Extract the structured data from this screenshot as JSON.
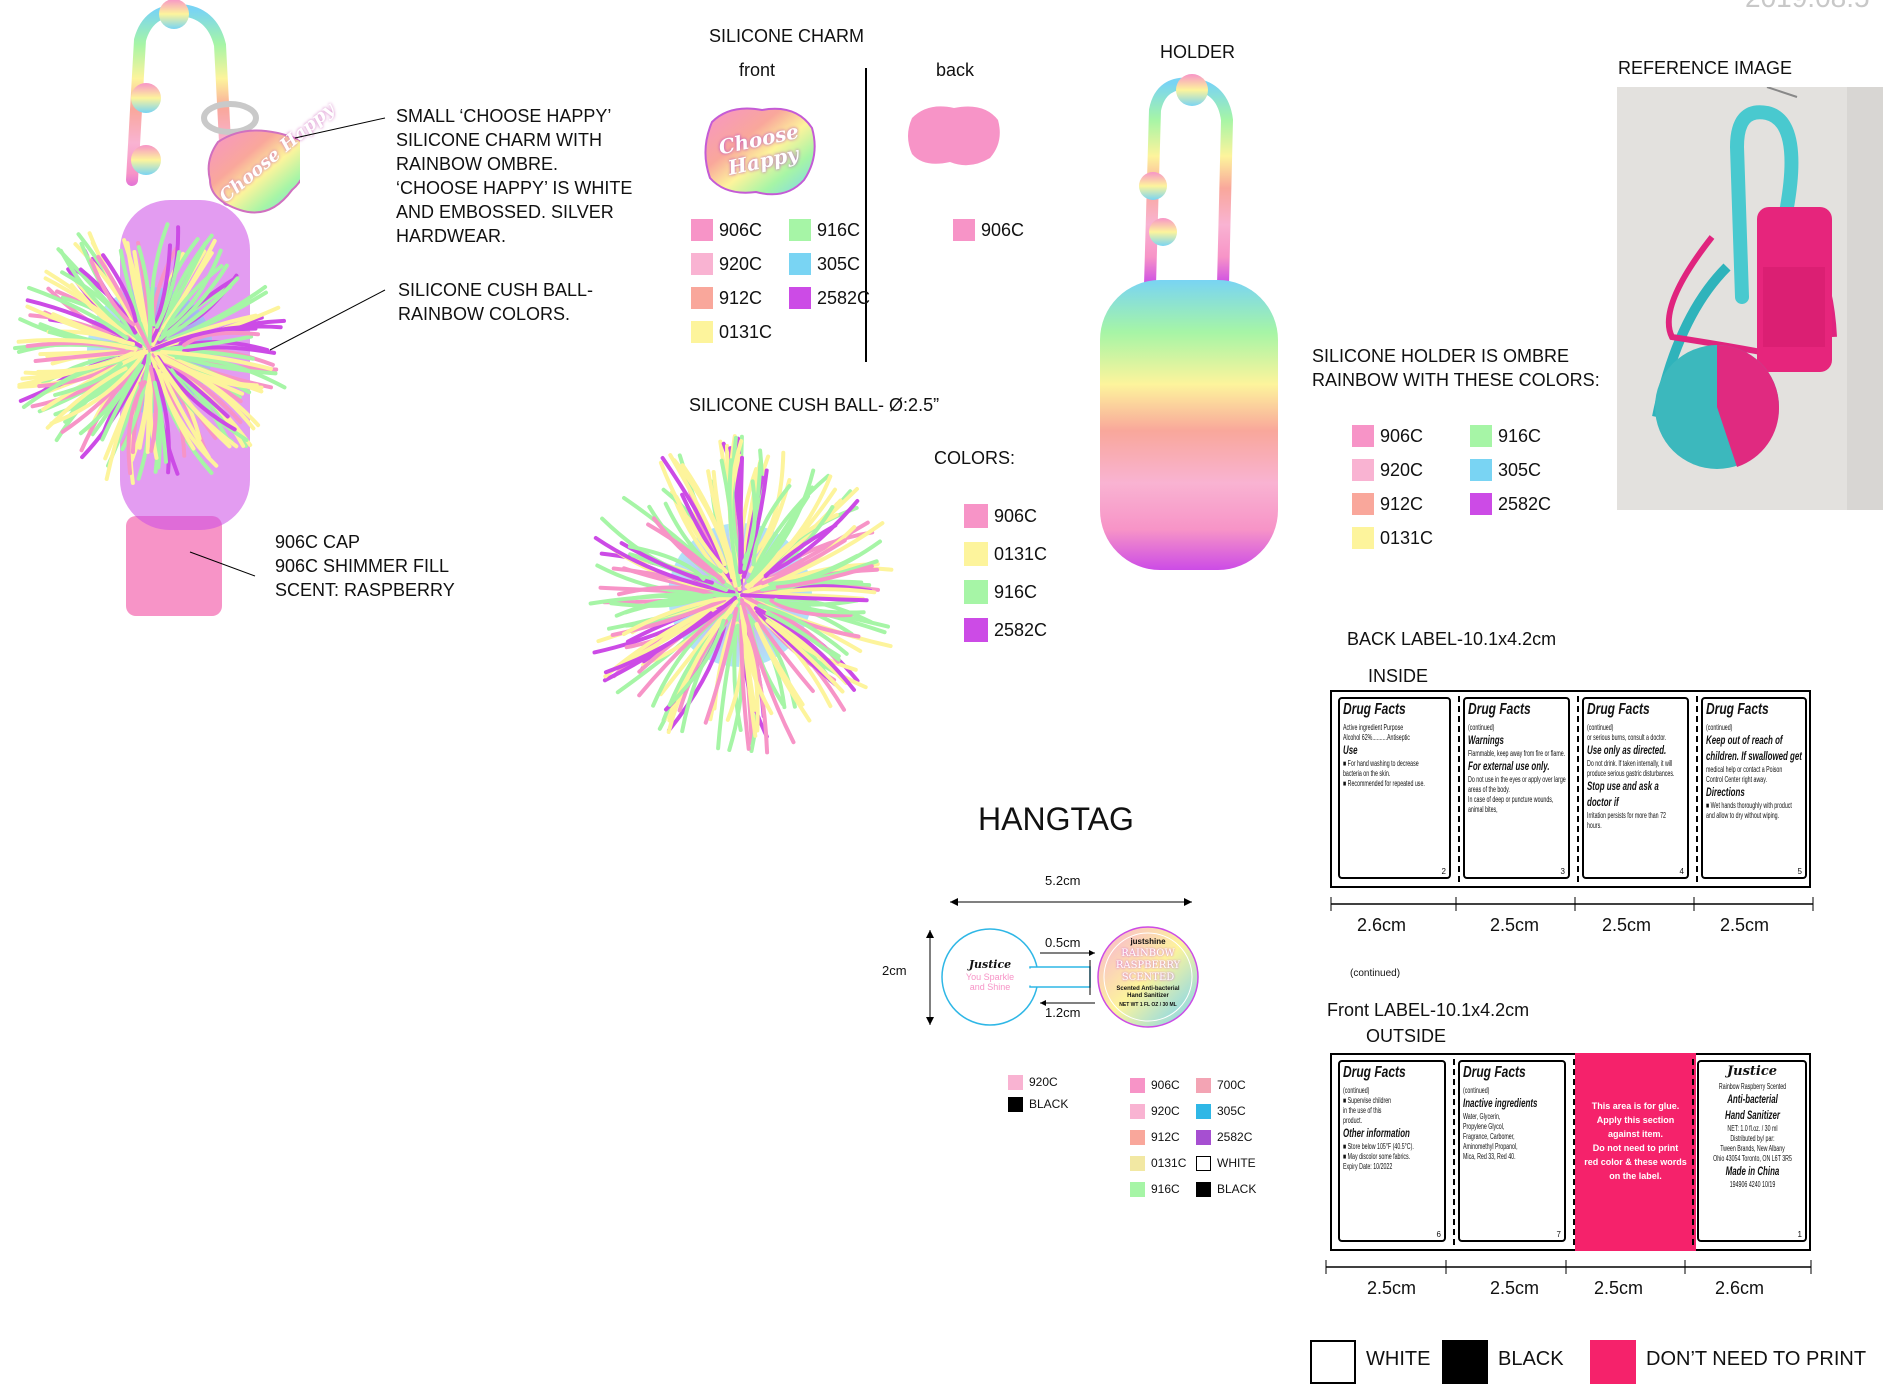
{
  "date_stamp": "2019.08.5",
  "product": {
    "charm_callout": [
      "SMALL ‘CHOOSE HAPPY’",
      "SILICONE CHARM WITH",
      "RAINBOW OMBRE.",
      "‘CHOOSE HAPPY’ IS WHITE",
      "AND EMBOSSED. SILVER",
      "HARDWEAR."
    ],
    "ball_callout": [
      "SILICONE CUSH BALL-",
      " RAINBOW COLORS."
    ],
    "cap_callout": [
      "906C CAP",
      "906C SHIMMER FILL",
      "SCENT: RASPBERRY"
    ]
  },
  "charm": {
    "title": "SILICONE CHARM",
    "front_label": "front",
    "back_label": "back",
    "charm_text": "Choose Happy",
    "front_colors": [
      {
        "code": "906C",
        "hex": "#f794c7"
      },
      {
        "code": "916C",
        "hex": "#a6f5a6"
      },
      {
        "code": "920C",
        "hex": "#f9b3d2"
      },
      {
        "code": "305C",
        "hex": "#79d4f3"
      },
      {
        "code": "912C",
        "hex": "#f9a79b"
      },
      {
        "code": "2582C",
        "hex": "#cc4be6"
      },
      {
        "code": "0131C",
        "hex": "#fdf49c"
      }
    ],
    "back_colors": [
      {
        "code": "906C",
        "hex": "#f794c7"
      }
    ]
  },
  "cush_ball": {
    "title": "SILICONE CUSH BALL- Ø:2.5”",
    "colors_heading": "COLORS:",
    "colors": [
      {
        "code": "906C",
        "hex": "#f794c7"
      },
      {
        "code": "0131C",
        "hex": "#fdf49c"
      },
      {
        "code": "916C",
        "hex": "#a6f5a6"
      },
      {
        "code": "2582C",
        "hex": "#cc4be6"
      }
    ]
  },
  "holder": {
    "title": "HOLDER",
    "description": [
      "SILICONE HOLDER IS OMBRE",
      "RAINBOW WITH THESE COLORS:"
    ],
    "colors": [
      {
        "code": "906C",
        "hex": "#f794c7"
      },
      {
        "code": "916C",
        "hex": "#a6f5a6"
      },
      {
        "code": "920C",
        "hex": "#f9b3d2"
      },
      {
        "code": "305C",
        "hex": "#79d4f3"
      },
      {
        "code": "912C",
        "hex": "#f9a79b"
      },
      {
        "code": "2582C",
        "hex": "#cc4be6"
      },
      {
        "code": "0131C",
        "hex": "#fdf49c"
      }
    ]
  },
  "reference": {
    "title": "REFERENCE IMAGE"
  },
  "hangtag": {
    "title": "HANGTAG",
    "width_dim": "5.2cm",
    "height_dim": "2cm",
    "neck_dim": "0.5cm",
    "gap_dim": "1.2cm",
    "left_circle": {
      "brand": "Justice",
      "tagline": [
        "You Sparkle",
        "and Shine"
      ]
    },
    "right_circle": {
      "brand": "justshine",
      "name": [
        "RAINBOW",
        "RASPBERRY",
        "SCENTED"
      ],
      "sub": [
        "Scented Anti-bacterial",
        "Hand Sanitizer"
      ],
      "net": "NET WT 1 FL OZ / 30 ML"
    },
    "left_colors": [
      {
        "code": "920C",
        "hex": "#f9b3d2"
      },
      {
        "code": "BLACK",
        "hex": "#000000"
      }
    ],
    "right_colors": [
      {
        "code": "906C",
        "hex": "#f794c7"
      },
      {
        "code": "700C",
        "hex": "#f3a4b4"
      },
      {
        "code": "920C",
        "hex": "#f9b3d2"
      },
      {
        "code": "305C",
        "hex": "#2fb7e6"
      },
      {
        "code": "912C",
        "hex": "#f9a79b"
      },
      {
        "code": "2582C",
        "hex": "#a64fd1"
      },
      {
        "code": "0131C",
        "hex": "#f2e8a3"
      },
      {
        "code": "WHITE",
        "hex": "#ffffff"
      },
      {
        "code": "916C",
        "hex": "#a6f5a6"
      },
      {
        "code": "BLACK",
        "hex": "#000000"
      }
    ]
  },
  "back_label": {
    "title": "BACK LABEL-10.1x4.2cm",
    "side": "INSIDE",
    "dims": [
      "2.6cm",
      "2.5cm",
      "2.5cm",
      "2.5cm"
    ],
    "continued_note": "(continued)",
    "panels": [
      {
        "head": "Drug Facts",
        "lines": [
          "Active ingredient   Purpose",
          "Alcohol 62%..........Antiseptic",
          "Use",
          "■ For hand washing to decrease",
          "bacteria on the skin.",
          "■ Recommended for repeated use."
        ],
        "num": "2"
      },
      {
        "head": "Drug Facts",
        "lines": [
          "(continued)",
          "Warnings",
          "Flammable, keep away from fire or flame.",
          "For external use only.",
          "Do not use in the eyes or apply over large",
          "areas of the body.",
          "In case of deep or puncture wounds,",
          "animal bites,"
        ],
        "num": "3"
      },
      {
        "head": "Drug Facts",
        "lines": [
          "(continued)",
          "or serious burns, consult a doctor.",
          "Use only as directed.",
          "Do not drink. If taken internally, it will",
          "produce serious gastric disturbances.",
          "Stop use and ask a",
          "doctor if",
          "Irritation persists for more than 72",
          "hours."
        ],
        "num": "4"
      },
      {
        "head": "Drug Facts",
        "lines": [
          "(continued)",
          "Keep out of reach of",
          "children. If swallowed get",
          "medical help or contact a Poison",
          "Control Center right away.",
          "Directions",
          "■ Wet hands thoroughly with product",
          "and allow to dry without wiping."
        ],
        "num": "5"
      }
    ]
  },
  "front_label": {
    "title": "Front LABEL-10.1x4.2cm",
    "side": "OUTSIDE",
    "dims": [
      "2.5cm",
      "2.5cm",
      "2.5cm",
      "2.6cm"
    ],
    "panels": [
      {
        "head": "Drug Facts",
        "lines": [
          "(continued)",
          "■ Supervise children",
          "in the use of this",
          "product.",
          "Other information",
          "■ Store below 105°F (40.5°C).",
          "■ May discolor some fabrics.",
          "Expiry Date: 10/2022"
        ],
        "num": "6"
      },
      {
        "head": "Drug Facts",
        "lines": [
          "(continued)",
          "Inactive ingredients",
          "Water, Glycerin,",
          "Propylene Glycol,",
          "Fragrance, Carbomer,",
          "Aminomethyl Propanol,",
          "Mica, Red 33, Red 40."
        ],
        "num": "7"
      },
      {
        "glue": [
          "This area is for glue.",
          "Apply this section",
          "against item.",
          "Do not need to print",
          "red color & these words",
          "on the label."
        ]
      },
      {
        "brand": "Justice",
        "lines": [
          "Rainbow Raspberry Scented",
          "Anti-bacterial",
          "Hand Sanitizer",
          "NET: 1.0 fl.oz. / 30 ml",
          "Distributed by/ par:",
          "Tween Brands, New Albany",
          "Ohio 43054 Toronto, ON L6T 3R5",
          "Made in China",
          "194906 4240   10/19"
        ],
        "num": "1"
      }
    ]
  },
  "legend": [
    {
      "label": "WHITE",
      "hex": "#ffffff"
    },
    {
      "label": "BLACK",
      "hex": "#000000"
    },
    {
      "label": "DON’T NEED TO PRINT",
      "hex": "#f5226b"
    }
  ]
}
